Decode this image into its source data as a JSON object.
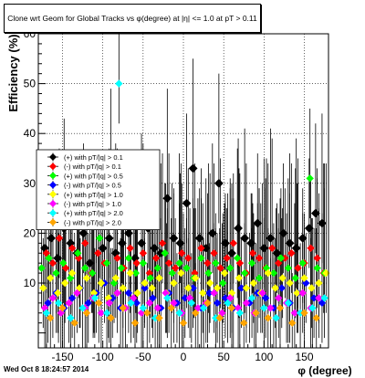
{
  "title": "Clone wrt Geom for Global Tracks vs φ(degree) at |η| <= 1.0 at pT > 0.11",
  "timestamp": "Wed Oct  8 18:24:57 2014",
  "chart_data": {
    "type": "scatter",
    "xlabel": "φ (degree)",
    "ylabel": "Efficiency (%)",
    "xlim": [
      -180,
      180
    ],
    "ylim": [
      -3,
      60
    ],
    "xticks": [
      -150,
      -100,
      -50,
      0,
      50,
      100,
      150
    ],
    "yticks": [
      10,
      20,
      30,
      40,
      50,
      60
    ],
    "grid": true,
    "legend_placement": "middle-left",
    "series": [
      {
        "name": "(+) with pT/|q| > 0.1",
        "color": "#000000",
        "marker": "diamond",
        "x": [
          -172,
          -164,
          -156,
          -148,
          -140,
          -132,
          -124,
          -116,
          -108,
          -100,
          -92,
          -84,
          -76,
          -68,
          -60,
          -52,
          -44,
          -36,
          -28,
          -20,
          -12,
          -4,
          4,
          12,
          20,
          28,
          36,
          44,
          52,
          60,
          68,
          76,
          84,
          92,
          100,
          108,
          116,
          124,
          132,
          140,
          148,
          156,
          164,
          172
        ],
        "y": [
          17,
          19,
          15,
          21,
          18,
          16,
          20,
          14,
          22,
          17,
          19,
          16,
          18,
          20,
          15,
          18,
          21,
          17,
          16,
          27,
          19,
          18,
          26,
          33,
          19,
          17,
          20,
          30,
          18,
          16,
          21,
          19,
          18,
          22,
          17,
          19,
          16,
          20,
          18,
          17,
          19,
          21,
          24,
          22
        ]
      },
      {
        "name": "(-) with pT/|q| > 0.1",
        "color": "#ff0000",
        "marker": "diamond",
        "x": [
          -170,
          -162,
          -154,
          -146,
          -138,
          -130,
          -122,
          -114,
          -106,
          -98,
          -90,
          -82,
          -74,
          -66,
          -58,
          -50,
          -42,
          -34,
          -26,
          -18,
          -10,
          -2,
          6,
          14,
          22,
          30,
          38,
          46,
          54,
          62,
          70,
          78,
          86,
          94,
          102,
          110,
          118,
          126,
          134,
          142,
          150,
          158,
          166,
          174
        ],
        "y": [
          16,
          14,
          19,
          13,
          17,
          15,
          18,
          12,
          16,
          14,
          31,
          15,
          13,
          17,
          14,
          16,
          12,
          15,
          18,
          14,
          13,
          16,
          15,
          12,
          17,
          14,
          16,
          13,
          15,
          18,
          14,
          12,
          16,
          15,
          13,
          17,
          14,
          15,
          16,
          13,
          14,
          17,
          15,
          12
        ]
      },
      {
        "name": "(+) with pT/|q| > 0.5",
        "color": "#00ff00",
        "marker": "diamond",
        "x": [
          -176,
          -167,
          -158,
          -149,
          -140,
          -131,
          -122,
          -113,
          -104,
          -95,
          -86,
          -77,
          -68,
          -59,
          -50,
          -41,
          -32,
          -23,
          -14,
          -5,
          4,
          13,
          22,
          31,
          40,
          49,
          58,
          67,
          76,
          85,
          94,
          103,
          112,
          121,
          130,
          139,
          148,
          157,
          166,
          175
        ],
        "y": [
          13,
          15,
          12,
          14,
          11,
          16,
          13,
          12,
          19,
          14,
          10,
          13,
          15,
          12,
          14,
          11,
          13,
          16,
          12,
          14,
          13,
          11,
          15,
          12,
          14,
          10,
          13,
          15,
          12,
          14,
          11,
          13,
          12,
          15,
          13,
          11,
          14,
          31,
          13,
          12
        ]
      },
      {
        "name": "(-) with pT/|q| > 0.5",
        "color": "#0000ff",
        "marker": "diamond",
        "x": [
          -168,
          -158,
          -148,
          -138,
          -128,
          -118,
          -108,
          -98,
          -88,
          -78,
          -68,
          -58,
          -48,
          -38,
          -28,
          -18,
          -8,
          2,
          12,
          22,
          32,
          42,
          52,
          62,
          72,
          82,
          92,
          102,
          112,
          122,
          132,
          142,
          152,
          162,
          172
        ],
        "y": [
          6,
          8,
          5,
          7,
          9,
          6,
          8,
          10,
          7,
          5,
          8,
          6,
          9,
          7,
          5,
          8,
          6,
          7,
          9,
          5,
          8,
          6,
          7,
          5,
          9,
          6,
          8,
          7,
          5,
          9,
          6,
          8,
          10,
          7,
          6
        ]
      },
      {
        "name": "(+) with pT/|q| > 1.0",
        "color": "#ffff00",
        "marker": "diamond",
        "x": [
          -174,
          -165,
          -156,
          -147,
          -138,
          -129,
          -120,
          -111,
          -102,
          -93,
          -84,
          -75,
          -66,
          -57,
          -48,
          -39,
          -30,
          -21,
          -12,
          -3,
          6,
          15,
          24,
          33,
          42,
          51,
          60,
          69,
          78,
          87,
          96,
          105,
          114,
          123,
          132,
          141,
          150,
          159,
          168,
          177
        ],
        "y": [
          9,
          11,
          8,
          10,
          12,
          9,
          11,
          8,
          10,
          7,
          11,
          9,
          12,
          8,
          10,
          9,
          11,
          8,
          10,
          12,
          9,
          11,
          8,
          10,
          9,
          12,
          8,
          11,
          9,
          10,
          8,
          12,
          9,
          11,
          10,
          8,
          11,
          9,
          10,
          12
        ]
      },
      {
        "name": "(-) with pT/|q| > 1.0",
        "color": "#ff00ff",
        "marker": "diamond",
        "x": [
          -172,
          -162,
          -152,
          -142,
          -132,
          -122,
          -112,
          -102,
          -92,
          -82,
          -72,
          -62,
          -52,
          -42,
          -32,
          -22,
          -12,
          -2,
          8,
          18,
          28,
          38,
          48,
          58,
          68,
          78,
          88,
          98,
          108,
          118,
          128,
          138,
          148,
          158,
          168
        ],
        "y": [
          5,
          7,
          4,
          6,
          8,
          5,
          7,
          4,
          6,
          8,
          5,
          7,
          4,
          6,
          5,
          8,
          6,
          4,
          7,
          5,
          6,
          8,
          4,
          7,
          5,
          6,
          4,
          8,
          5,
          7,
          6,
          4,
          8,
          5,
          7
        ]
      },
      {
        "name": "(+) with pT/|q| > 2.0",
        "color": "#00ffff",
        "marker": "diamond",
        "x": [
          -170,
          -155,
          -140,
          -125,
          -110,
          -95,
          -80,
          -65,
          -50,
          -35,
          -20,
          -5,
          10,
          25,
          40,
          55,
          70,
          85,
          100,
          115,
          130,
          145,
          160,
          175
        ],
        "y": [
          4,
          6,
          3,
          5,
          7,
          4,
          50,
          6,
          5,
          3,
          7,
          4,
          6,
          5,
          3,
          6,
          4,
          7,
          5,
          3,
          6,
          4,
          5,
          7
        ]
      },
      {
        "name": "(-) with pT/|q| > 2.0",
        "color": "#ffa500",
        "marker": "diamond",
        "x": [
          -165,
          -150,
          -135,
          -120,
          -105,
          -90,
          -75,
          -60,
          -45,
          -30,
          -15,
          0,
          15,
          30,
          45,
          60,
          75,
          90,
          105,
          120,
          135,
          150,
          165
        ],
        "y": [
          3,
          5,
          2,
          4,
          6,
          3,
          5,
          2,
          4,
          3,
          5,
          2,
          4,
          6,
          3,
          5,
          2,
          4,
          3,
          5,
          2,
          4,
          3
        ]
      }
    ]
  }
}
